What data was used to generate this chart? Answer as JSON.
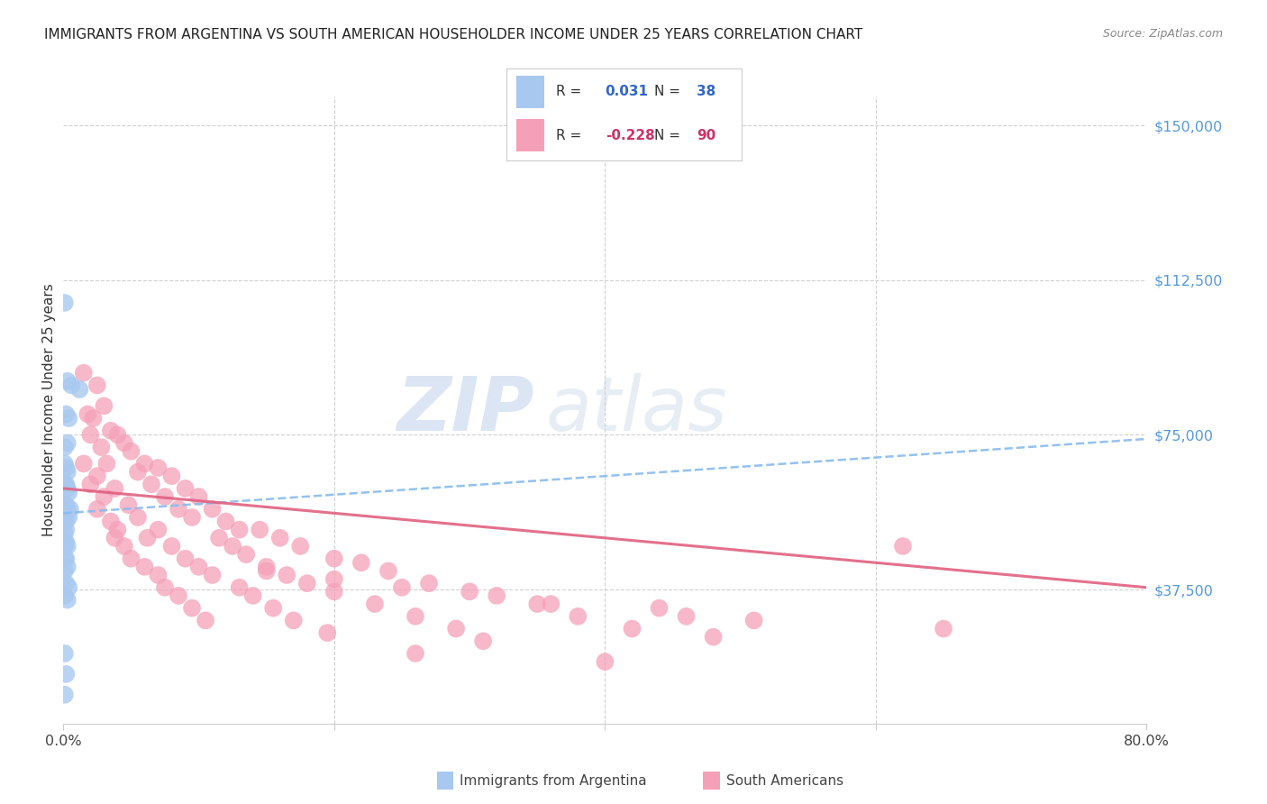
{
  "title": "IMMIGRANTS FROM ARGENTINA VS SOUTH AMERICAN HOUSEHOLDER INCOME UNDER 25 YEARS CORRELATION CHART",
  "source": "Source: ZipAtlas.com",
  "ylabel": "Householder Income Under 25 years",
  "xmin": 0.0,
  "xmax": 0.8,
  "ymin": 5000,
  "ymax": 157000,
  "yticks": [
    37500,
    75000,
    112500,
    150000
  ],
  "ytick_labels": [
    "$37,500",
    "$75,000",
    "$112,500",
    "$150,000"
  ],
  "grid_color": "#d0d0d0",
  "bg_color": "#ffffff",
  "watermark_zip": "ZIP",
  "watermark_atlas": "atlas",
  "label1": "Immigrants from Argentina",
  "label2": "South Americans",
  "color1": "#a8c8f0",
  "color2": "#f5a0b8",
  "trend1_color": "#88bbee",
  "trend2_color": "#e06080",
  "blue_dots": [
    [
      0.001,
      107000
    ],
    [
      0.003,
      88000
    ],
    [
      0.006,
      87000
    ],
    [
      0.012,
      86000
    ],
    [
      0.002,
      80000
    ],
    [
      0.004,
      79000
    ],
    [
      0.001,
      72000
    ],
    [
      0.003,
      73000
    ],
    [
      0.001,
      68000
    ],
    [
      0.002,
      67000
    ],
    [
      0.003,
      66000
    ],
    [
      0.001,
      63000
    ],
    [
      0.002,
      63000
    ],
    [
      0.003,
      62000
    ],
    [
      0.004,
      61000
    ],
    [
      0.001,
      58000
    ],
    [
      0.002,
      58000
    ],
    [
      0.003,
      57000
    ],
    [
      0.005,
      57000
    ],
    [
      0.001,
      54000
    ],
    [
      0.002,
      54000
    ],
    [
      0.004,
      55000
    ],
    [
      0.001,
      51000
    ],
    [
      0.002,
      52000
    ],
    [
      0.001,
      48000
    ],
    [
      0.002,
      49000
    ],
    [
      0.003,
      48000
    ],
    [
      0.001,
      45000
    ],
    [
      0.002,
      45000
    ],
    [
      0.001,
      42000
    ],
    [
      0.003,
      43000
    ],
    [
      0.002,
      39000
    ],
    [
      0.004,
      38000
    ],
    [
      0.001,
      36000
    ],
    [
      0.003,
      35000
    ],
    [
      0.001,
      22000
    ],
    [
      0.002,
      17000
    ],
    [
      0.001,
      12000
    ]
  ],
  "pink_dots": [
    [
      0.015,
      90000
    ],
    [
      0.025,
      87000
    ],
    [
      0.03,
      82000
    ],
    [
      0.018,
      80000
    ],
    [
      0.022,
      79000
    ],
    [
      0.02,
      75000
    ],
    [
      0.035,
      76000
    ],
    [
      0.04,
      75000
    ],
    [
      0.028,
      72000
    ],
    [
      0.045,
      73000
    ],
    [
      0.05,
      71000
    ],
    [
      0.015,
      68000
    ],
    [
      0.032,
      68000
    ],
    [
      0.06,
      68000
    ],
    [
      0.07,
      67000
    ],
    [
      0.025,
      65000
    ],
    [
      0.055,
      66000
    ],
    [
      0.08,
      65000
    ],
    [
      0.02,
      63000
    ],
    [
      0.038,
      62000
    ],
    [
      0.065,
      63000
    ],
    [
      0.09,
      62000
    ],
    [
      0.03,
      60000
    ],
    [
      0.075,
      60000
    ],
    [
      0.1,
      60000
    ],
    [
      0.025,
      57000
    ],
    [
      0.048,
      58000
    ],
    [
      0.085,
      57000
    ],
    [
      0.11,
      57000
    ],
    [
      0.035,
      54000
    ],
    [
      0.055,
      55000
    ],
    [
      0.095,
      55000
    ],
    [
      0.12,
      54000
    ],
    [
      0.04,
      52000
    ],
    [
      0.07,
      52000
    ],
    [
      0.13,
      52000
    ],
    [
      0.145,
      52000
    ],
    [
      0.038,
      50000
    ],
    [
      0.062,
      50000
    ],
    [
      0.115,
      50000
    ],
    [
      0.16,
      50000
    ],
    [
      0.045,
      48000
    ],
    [
      0.08,
      48000
    ],
    [
      0.125,
      48000
    ],
    [
      0.175,
      48000
    ],
    [
      0.05,
      45000
    ],
    [
      0.09,
      45000
    ],
    [
      0.135,
      46000
    ],
    [
      0.2,
      45000
    ],
    [
      0.06,
      43000
    ],
    [
      0.1,
      43000
    ],
    [
      0.15,
      43000
    ],
    [
      0.22,
      44000
    ],
    [
      0.07,
      41000
    ],
    [
      0.11,
      41000
    ],
    [
      0.165,
      41000
    ],
    [
      0.24,
      42000
    ],
    [
      0.075,
      38000
    ],
    [
      0.13,
      38000
    ],
    [
      0.18,
      39000
    ],
    [
      0.27,
      39000
    ],
    [
      0.085,
      36000
    ],
    [
      0.14,
      36000
    ],
    [
      0.2,
      37000
    ],
    [
      0.3,
      37000
    ],
    [
      0.095,
      33000
    ],
    [
      0.155,
      33000
    ],
    [
      0.23,
      34000
    ],
    [
      0.35,
      34000
    ],
    [
      0.105,
      30000
    ],
    [
      0.17,
      30000
    ],
    [
      0.26,
      31000
    ],
    [
      0.38,
      31000
    ],
    [
      0.195,
      27000
    ],
    [
      0.29,
      28000
    ],
    [
      0.42,
      28000
    ],
    [
      0.31,
      25000
    ],
    [
      0.48,
      26000
    ],
    [
      0.26,
      22000
    ],
    [
      0.4,
      20000
    ],
    [
      0.62,
      48000
    ],
    [
      0.65,
      28000
    ],
    [
      0.15,
      42000
    ],
    [
      0.2,
      40000
    ],
    [
      0.25,
      38000
    ],
    [
      0.32,
      36000
    ],
    [
      0.36,
      34000
    ],
    [
      0.44,
      33000
    ],
    [
      0.46,
      31000
    ],
    [
      0.51,
      30000
    ]
  ],
  "trend1_x": [
    0.0,
    0.8
  ],
  "trend1_y": [
    56000,
    74000
  ],
  "trend2_x": [
    0.0,
    0.8
  ],
  "trend2_y": [
    62000,
    38000
  ]
}
